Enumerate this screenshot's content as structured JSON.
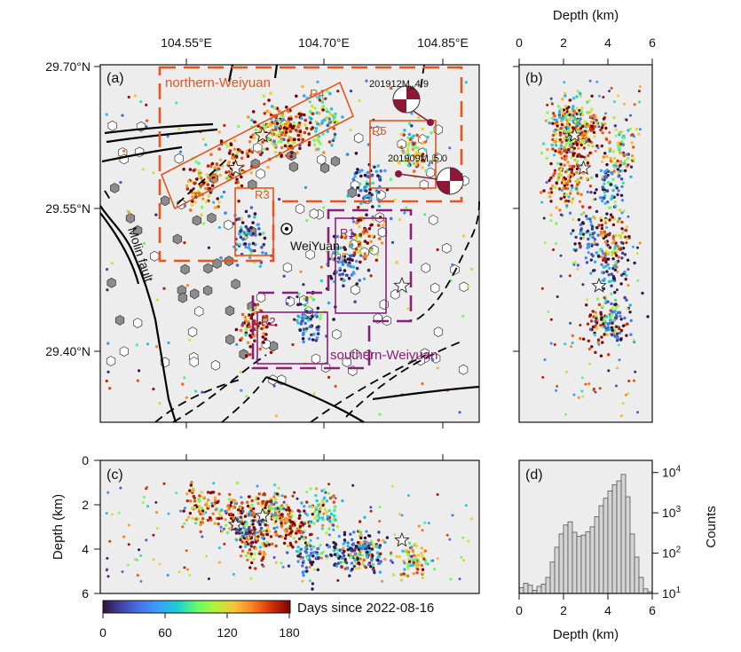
{
  "figure": {
    "map": {
      "label": "(a)",
      "lon_ticks": [
        "104.55°E",
        "104.70°E",
        "104.85°E"
      ],
      "lat_ticks": [
        "29.70°N",
        "29.55°N",
        "29.40°N"
      ],
      "xlim": [
        104.43,
        104.92
      ],
      "ylim": [
        29.32,
        29.7
      ],
      "fault_label": "Molin fault",
      "town_label": "WeiYuan",
      "zone_labels": [
        "northern-Weiyuan",
        "southern-Weiyuan"
      ],
      "region_labels": [
        "R1",
        "R2",
        "R3",
        "R4",
        "R5"
      ],
      "event_labels": [
        {
          "prefix": "201912M",
          "sub": "w",
          "mag": "4.9"
        },
        {
          "prefix": "201909M",
          "sub": "w",
          "mag": "5.0"
        }
      ],
      "colors": {
        "northern": "#e8541c",
        "southern": "#8a1f7a",
        "beachball": "#8a1836"
      }
    },
    "depth_profile_b": {
      "label": "(b)",
      "xlabel": "Depth (km)",
      "ticks": [
        "0",
        "2",
        "4",
        "6"
      ],
      "xlim": [
        0,
        6
      ]
    },
    "depth_profile_c": {
      "label": "(c)",
      "ylabel": "Depth (km)",
      "ticks": [
        "0",
        "2",
        "4",
        "6"
      ],
      "ylim": [
        0,
        6
      ]
    },
    "colorbar": {
      "label": "Days since 2022-08-16",
      "ticks": [
        "0",
        "60",
        "120",
        "180"
      ],
      "range": [
        0,
        180
      ]
    }
  },
  "chart_data": [
    {
      "type": "scatter",
      "panel": "(a)",
      "xlabel": "",
      "ylabel": "",
      "xlim": [
        104.43,
        104.92
      ],
      "ylim": [
        29.32,
        29.7
      ],
      "clusters": [
        {
          "lon": 104.64,
          "lat": 29.625,
          "days": 150
        },
        {
          "lon": 104.66,
          "lat": 29.63,
          "days": 120
        },
        {
          "lon": 104.68,
          "lat": 29.632,
          "days": 170
        },
        {
          "lon": 104.72,
          "lat": 29.64,
          "days": 90
        },
        {
          "lon": 104.6,
          "lat": 29.59,
          "days": 160
        },
        {
          "lon": 104.56,
          "lat": 29.57,
          "days": 140
        },
        {
          "lon": 104.62,
          "lat": 29.52,
          "days": 30
        },
        {
          "lon": 104.745,
          "lat": 29.49,
          "days": 25
        },
        {
          "lon": 104.77,
          "lat": 29.52,
          "days": 150
        },
        {
          "lon": 104.63,
          "lat": 29.42,
          "days": 170
        },
        {
          "lon": 104.7,
          "lat": 29.43,
          "days": 40
        },
        {
          "lon": 104.835,
          "lat": 29.61,
          "days": 110
        },
        {
          "lon": 104.78,
          "lat": 29.575,
          "days": 30
        }
      ],
      "mainshocks": [
        {
          "lon": 104.64,
          "lat": 29.625
        },
        {
          "lon": 104.605,
          "lat": 29.59
        },
        {
          "lon": 104.82,
          "lat": 29.465
        }
      ]
    },
    {
      "type": "scatter",
      "panel": "(b)",
      "xlabel": "Depth (km)",
      "xlim": [
        0,
        6
      ]
    },
    {
      "type": "scatter",
      "panel": "(c)",
      "ylabel": "Depth (km)",
      "ylim": [
        0,
        6
      ]
    },
    {
      "type": "bar",
      "panel": "(d)",
      "xlabel": "Depth (km)",
      "ylabel": "Counts",
      "yscale": "log",
      "xlim": [
        0,
        6
      ],
      "ylim": [
        10,
        20000
      ],
      "ytick_labels": [
        {
          "base": "10",
          "exp": "1"
        },
        {
          "base": "10",
          "exp": "2"
        },
        {
          "base": "10",
          "exp": "3"
        },
        {
          "base": "10",
          "exp": "4"
        }
      ],
      "bin_width": 0.2,
      "bin_starts": [
        0.0,
        0.2,
        0.4,
        0.6,
        0.8,
        1.0,
        1.2,
        1.4,
        1.6,
        1.8,
        2.0,
        2.2,
        2.4,
        2.6,
        2.8,
        3.0,
        3.2,
        3.4,
        3.6,
        3.8,
        4.0,
        4.2,
        4.4,
        4.6,
        4.8,
        5.0,
        5.2,
        5.4,
        5.6,
        5.8
      ],
      "values": [
        14,
        18,
        16,
        12,
        15,
        17,
        25,
        60,
        140,
        300,
        500,
        600,
        330,
        260,
        280,
        340,
        450,
        800,
        1500,
        2300,
        3500,
        5000,
        6200,
        9000,
        2500,
        300,
        80,
        25,
        13,
        11
      ]
    }
  ]
}
